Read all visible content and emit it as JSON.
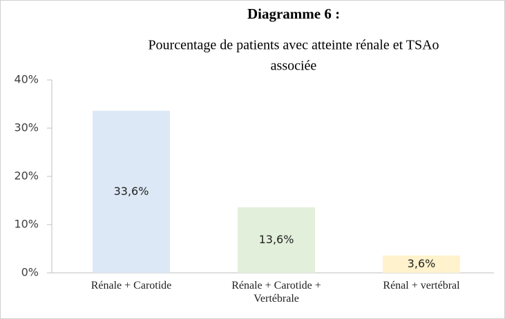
{
  "chart_data": {
    "type": "bar",
    "title": "Diagramme 6 :",
    "subtitle": [
      "Pourcentage de patients avec atteinte rénale et TSAo",
      "associée"
    ],
    "categories": [
      "Rénale + Carotide",
      "Rénale + Carotide + Vertébrale",
      "Rénal + vertébral"
    ],
    "values": [
      33.6,
      13.6,
      3.6
    ],
    "value_labels": [
      "33,6%",
      "13,6%",
      "3,6%"
    ],
    "colors": [
      "#dce8f5",
      "#e2efda",
      "#fff2cc"
    ],
    "ylim": [
      0,
      40
    ],
    "yticks": [
      {
        "value": 0,
        "label": "0%"
      },
      {
        "value": 10,
        "label": "10%"
      },
      {
        "value": 20,
        "label": "20%"
      },
      {
        "value": 30,
        "label": "30%"
      },
      {
        "value": 40,
        "label": "40%"
      }
    ],
    "grid": false
  }
}
